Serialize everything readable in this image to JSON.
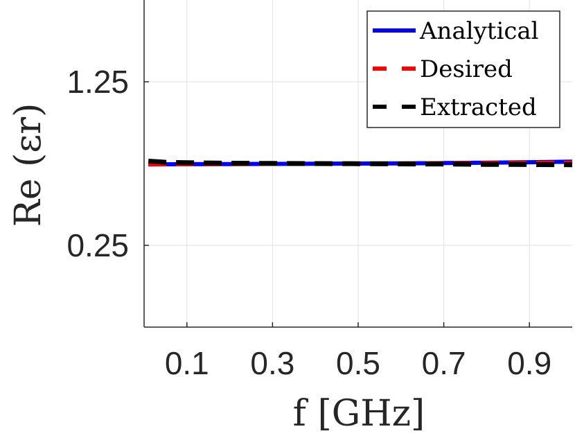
{
  "chart_data": {
    "type": "line",
    "xlabel": "f [GHz]",
    "ylabel": "Re (εr)",
    "x_ticks": [
      "0.1",
      "0.3",
      "0.5",
      "0.7",
      "0.9"
    ],
    "x_tick_values": [
      0.1,
      0.3,
      0.5,
      0.7,
      0.9
    ],
    "y_ticks": [
      "0.25",
      "1.25"
    ],
    "y_tick_values": [
      0.25,
      1.25
    ],
    "xlim": [
      0.0,
      1.0
    ],
    "ylim": [
      -0.25,
      1.75
    ],
    "grid": true,
    "legend_position": "top-right",
    "series": [
      {
        "name": "Analytical",
        "style": "solid",
        "color": "#0000ff",
        "x": [
          0.01,
          0.1,
          0.2,
          0.3,
          0.4,
          0.5,
          0.6,
          0.7,
          0.8,
          0.9,
          1.0
        ],
        "y": [
          0.745,
          0.746,
          0.747,
          0.748,
          0.749,
          0.75,
          0.751,
          0.753,
          0.755,
          0.758,
          0.762
        ]
      },
      {
        "name": "Desired",
        "style": "dashed",
        "color": "#ff0000",
        "x": [
          0.01,
          0.1,
          0.2,
          0.3,
          0.4,
          0.5,
          0.6,
          0.7,
          0.8,
          0.9,
          1.0
        ],
        "y": [
          0.745,
          0.746,
          0.747,
          0.748,
          0.749,
          0.75,
          0.751,
          0.752,
          0.753,
          0.754,
          0.755
        ]
      },
      {
        "name": "Extracted",
        "style": "dashed",
        "color": "#000000",
        "x": [
          0.01,
          0.05,
          0.1,
          0.2,
          0.3,
          0.4,
          0.5,
          0.6,
          0.7,
          0.8,
          0.9,
          1.0
        ],
        "y": [
          0.765,
          0.758,
          0.755,
          0.752,
          0.751,
          0.75,
          0.749,
          0.748,
          0.747,
          0.745,
          0.744,
          0.743
        ]
      }
    ]
  }
}
